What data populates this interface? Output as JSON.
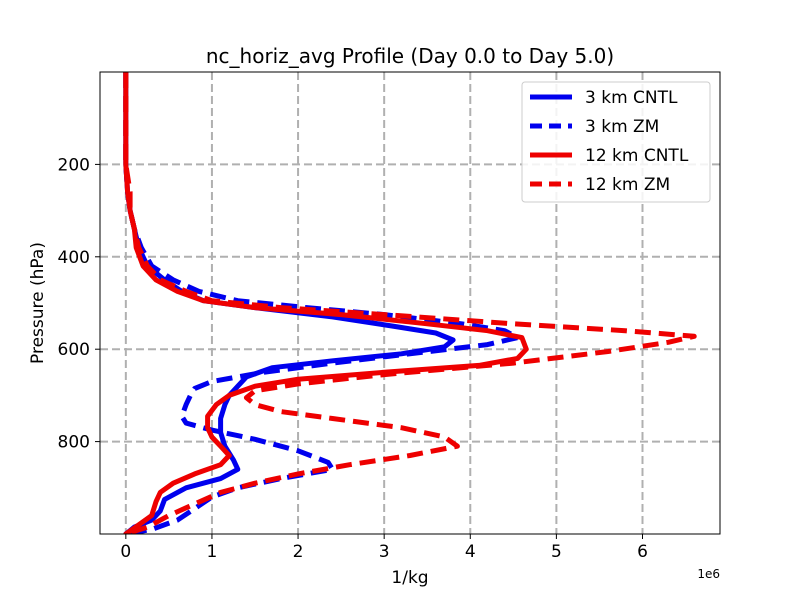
{
  "chart_data": {
    "type": "line",
    "title": "nc_horiz_avg Profile (Day 0.0 to Day 5.0)",
    "xlabel": "1/kg",
    "ylabel": "Pressure (hPa)",
    "x_offset_text": "1e6",
    "xlim": [
      -0.3,
      6.9
    ],
    "ylim": [
      1000,
      0
    ],
    "xticks": [
      0,
      1,
      2,
      3,
      4,
      5,
      6
    ],
    "xtick_labels": [
      "0",
      "1",
      "2",
      "3",
      "4",
      "5",
      "6"
    ],
    "yticks": [
      200,
      400,
      600,
      800
    ],
    "ytick_labels": [
      "200",
      "400",
      "600",
      "800"
    ],
    "grid": true,
    "legend_position": "top-right",
    "series": [
      {
        "name": "3 km CNTL",
        "color": "#0000ee",
        "dash": "solid",
        "points": [
          [
            0,
            0
          ],
          [
            0,
            100
          ],
          [
            0,
            200
          ],
          [
            0.02,
            260
          ],
          [
            0.05,
            300
          ],
          [
            0.1,
            340
          ],
          [
            0.15,
            380
          ],
          [
            0.25,
            420
          ],
          [
            0.45,
            450
          ],
          [
            0.65,
            475
          ],
          [
            0.9,
            495
          ],
          [
            1.5,
            510
          ],
          [
            2.4,
            530
          ],
          [
            3.1,
            550
          ],
          [
            3.6,
            565
          ],
          [
            3.8,
            580
          ],
          [
            3.7,
            595
          ],
          [
            3.2,
            610
          ],
          [
            2.4,
            625
          ],
          [
            1.7,
            640
          ],
          [
            1.4,
            660
          ],
          [
            1.3,
            680
          ],
          [
            1.2,
            700
          ],
          [
            1.15,
            720
          ],
          [
            1.1,
            750
          ],
          [
            1.1,
            780
          ],
          [
            1.15,
            810
          ],
          [
            1.25,
            840
          ],
          [
            1.3,
            860
          ],
          [
            1.1,
            880
          ],
          [
            0.7,
            900
          ],
          [
            0.45,
            925
          ],
          [
            0.4,
            950
          ],
          [
            0.3,
            970
          ],
          [
            0.1,
            985
          ],
          [
            0,
            1000
          ]
        ]
      },
      {
        "name": "3 km ZM",
        "color": "#0000ee",
        "dash": "dashed",
        "points": [
          [
            0,
            0
          ],
          [
            0,
            100
          ],
          [
            0,
            200
          ],
          [
            0.02,
            260
          ],
          [
            0.05,
            300
          ],
          [
            0.1,
            340
          ],
          [
            0.18,
            380
          ],
          [
            0.3,
            420
          ],
          [
            0.55,
            450
          ],
          [
            0.85,
            475
          ],
          [
            1.3,
            495
          ],
          [
            2.1,
            510
          ],
          [
            3.0,
            525
          ],
          [
            3.9,
            545
          ],
          [
            4.4,
            560
          ],
          [
            4.55,
            575
          ],
          [
            4.2,
            590
          ],
          [
            3.3,
            610
          ],
          [
            2.4,
            630
          ],
          [
            1.6,
            650
          ],
          [
            1.0,
            670
          ],
          [
            0.8,
            685
          ],
          [
            0.75,
            700
          ],
          [
            0.7,
            720
          ],
          [
            0.65,
            745
          ],
          [
            0.7,
            760
          ],
          [
            1.0,
            775
          ],
          [
            1.5,
            795
          ],
          [
            2.0,
            820
          ],
          [
            2.35,
            845
          ],
          [
            2.4,
            860
          ],
          [
            1.8,
            880
          ],
          [
            1.3,
            900
          ],
          [
            1.0,
            920
          ],
          [
            0.8,
            945
          ],
          [
            0.6,
            970
          ],
          [
            0.3,
            990
          ],
          [
            0,
            1000
          ]
        ]
      },
      {
        "name": "12 km CNTL",
        "color": "#ee0000",
        "dash": "solid",
        "points": [
          [
            0,
            0
          ],
          [
            0,
            100
          ],
          [
            0,
            200
          ],
          [
            0.02,
            260
          ],
          [
            0.05,
            300
          ],
          [
            0.1,
            340
          ],
          [
            0.12,
            380
          ],
          [
            0.2,
            420
          ],
          [
            0.35,
            450
          ],
          [
            0.6,
            475
          ],
          [
            0.9,
            495
          ],
          [
            1.5,
            510
          ],
          [
            2.5,
            525
          ],
          [
            3.5,
            545
          ],
          [
            4.2,
            560
          ],
          [
            4.6,
            575
          ],
          [
            4.65,
            600
          ],
          [
            4.55,
            620
          ],
          [
            4.1,
            635
          ],
          [
            3.0,
            650
          ],
          [
            2.0,
            665
          ],
          [
            1.5,
            680
          ],
          [
            1.2,
            700
          ],
          [
            1.05,
            720
          ],
          [
            0.95,
            745
          ],
          [
            0.95,
            770
          ],
          [
            1.0,
            790
          ],
          [
            1.1,
            810
          ],
          [
            1.2,
            830
          ],
          [
            1.1,
            850
          ],
          [
            0.8,
            870
          ],
          [
            0.55,
            890
          ],
          [
            0.4,
            910
          ],
          [
            0.35,
            930
          ],
          [
            0.3,
            960
          ],
          [
            0.15,
            980
          ],
          [
            0,
            1000
          ]
        ]
      },
      {
        "name": "12 km ZM",
        "color": "#ee0000",
        "dash": "dashed",
        "points": [
          [
            0,
            0
          ],
          [
            0,
            100
          ],
          [
            0,
            200
          ],
          [
            0.05,
            260
          ],
          [
            0.05,
            300
          ],
          [
            0.1,
            340
          ],
          [
            0.15,
            380
          ],
          [
            0.25,
            420
          ],
          [
            0.4,
            450
          ],
          [
            0.7,
            475
          ],
          [
            1.0,
            495
          ],
          [
            1.8,
            510
          ],
          [
            3.0,
            525
          ],
          [
            4.5,
            545
          ],
          [
            5.8,
            560
          ],
          [
            6.6,
            572
          ],
          [
            6.3,
            585
          ],
          [
            5.6,
            605
          ],
          [
            4.5,
            630
          ],
          [
            3.0,
            655
          ],
          [
            2.0,
            675
          ],
          [
            1.5,
            690
          ],
          [
            1.4,
            705
          ],
          [
            1.5,
            720
          ],
          [
            1.8,
            735
          ],
          [
            2.4,
            750
          ],
          [
            3.2,
            770
          ],
          [
            3.7,
            790
          ],
          [
            3.85,
            810
          ],
          [
            3.3,
            830
          ],
          [
            2.6,
            850
          ],
          [
            2.0,
            870
          ],
          [
            1.5,
            890
          ],
          [
            1.1,
            910
          ],
          [
            0.8,
            935
          ],
          [
            0.5,
            960
          ],
          [
            0.25,
            985
          ],
          [
            0,
            1000
          ]
        ]
      }
    ]
  }
}
